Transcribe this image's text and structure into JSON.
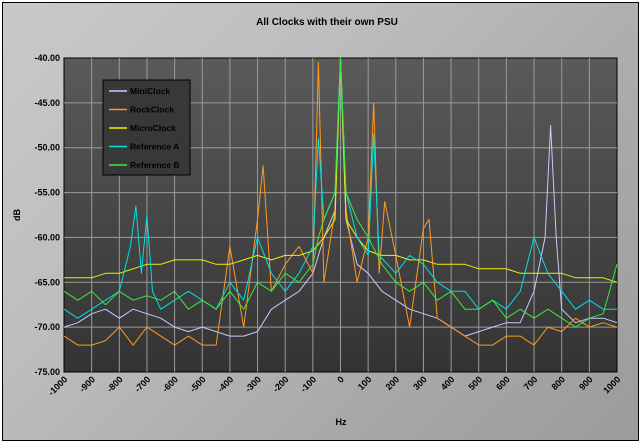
{
  "chart_data": {
    "type": "line",
    "title": "All Clocks with their own PSU",
    "xlabel": "Hz",
    "ylabel": "dB",
    "xlim": [
      -1000,
      1000
    ],
    "ylim": [
      -75,
      -40
    ],
    "grid": true,
    "legend_position": "top-left",
    "x_ticks": [
      "-1000",
      "-900",
      "-800",
      "-700",
      "-600",
      "-500",
      "-400",
      "-300",
      "-200",
      "-100",
      "0",
      "100",
      "200",
      "300",
      "400",
      "500",
      "600",
      "700",
      "800",
      "900",
      "1000"
    ],
    "y_ticks": [
      "-40.00",
      "-45.00",
      "-50.00",
      "-55.00",
      "-60.00",
      "-65.00",
      "-70.00",
      "-75.00"
    ],
    "series": [
      {
        "name": "MiniClock",
        "color": "#c8c8ff",
        "x": [
          -1000,
          -950,
          -900,
          -850,
          -800,
          -750,
          -700,
          -650,
          -600,
          -550,
          -500,
          -450,
          -400,
          -350,
          -300,
          -250,
          -200,
          -150,
          -100,
          -60,
          -20,
          0,
          20,
          60,
          100,
          150,
          200,
          250,
          300,
          350,
          400,
          450,
          500,
          550,
          600,
          650,
          700,
          740,
          760,
          780,
          800,
          850,
          900,
          950,
          1000
        ],
        "y": [
          -70,
          -69.5,
          -68.5,
          -68,
          -69,
          -68,
          -68.5,
          -69,
          -70,
          -70.5,
          -70,
          -70.5,
          -71,
          -71,
          -70.5,
          -68,
          -67,
          -66,
          -64,
          -60,
          -57,
          -40,
          -58,
          -63,
          -64,
          -66,
          -67,
          -68,
          -68.5,
          -69,
          -70,
          -71,
          -70.5,
          -70,
          -69.5,
          -69.5,
          -66,
          -60,
          -47.5,
          -60,
          -68,
          -69.5,
          -69,
          -69,
          -69.5
        ]
      },
      {
        "name": "RockClock",
        "color": "#ff9a1e",
        "x": [
          -1000,
          -950,
          -900,
          -850,
          -800,
          -750,
          -700,
          -650,
          -600,
          -550,
          -500,
          -450,
          -400,
          -350,
          -300,
          -280,
          -250,
          -200,
          -150,
          -100,
          -80,
          -60,
          -20,
          0,
          20,
          60,
          100,
          120,
          140,
          160,
          200,
          250,
          300,
          320,
          350,
          400,
          450,
          500,
          550,
          600,
          650,
          700,
          750,
          800,
          850,
          900,
          950,
          1000
        ],
        "y": [
          -71,
          -72,
          -72,
          -71.5,
          -70,
          -72,
          -70,
          -71,
          -72,
          -71,
          -72,
          -72,
          -61,
          -70,
          -58,
          -52,
          -66,
          -63,
          -61,
          -64,
          -40.5,
          -65,
          -57,
          -40,
          -57,
          -65,
          -60,
          -45,
          -64,
          -56,
          -62,
          -70,
          -59,
          -58,
          -69,
          -70,
          -71,
          -72,
          -72,
          -71,
          -71,
          -72,
          -70,
          -70.5,
          -69,
          -70,
          -69.5,
          -70
        ]
      },
      {
        "name": "MicroClock",
        "color": "#f0f000",
        "x": [
          -1000,
          -950,
          -900,
          -850,
          -800,
          -750,
          -700,
          -650,
          -600,
          -550,
          -500,
          -450,
          -400,
          -350,
          -300,
          -250,
          -200,
          -150,
          -100,
          -60,
          -20,
          0,
          20,
          60,
          100,
          150,
          200,
          250,
          300,
          350,
          400,
          450,
          500,
          550,
          600,
          650,
          700,
          750,
          800,
          850,
          900,
          950,
          1000
        ],
        "y": [
          -64.5,
          -64.5,
          -64.5,
          -64,
          -64,
          -63.5,
          -63,
          -63,
          -62.5,
          -62.5,
          -62.5,
          -63,
          -63,
          -62.5,
          -62,
          -62.5,
          -62,
          -62,
          -61.5,
          -60,
          -58,
          -40,
          -58,
          -60,
          -61.5,
          -62,
          -62,
          -62.5,
          -62.5,
          -63,
          -63,
          -63,
          -63.5,
          -63.5,
          -63.5,
          -64,
          -64,
          -64,
          -64,
          -64.5,
          -64.5,
          -64.5,
          -65
        ]
      },
      {
        "name": "Reference A",
        "color": "#00e0e0",
        "x": [
          -1000,
          -950,
          -900,
          -850,
          -800,
          -760,
          -740,
          -720,
          -700,
          -680,
          -650,
          -600,
          -550,
          -500,
          -450,
          -400,
          -350,
          -300,
          -250,
          -200,
          -150,
          -100,
          -80,
          -60,
          -20,
          0,
          20,
          60,
          100,
          120,
          140,
          200,
          250,
          300,
          350,
          400,
          450,
          500,
          550,
          600,
          650,
          700,
          750,
          800,
          850,
          900,
          950,
          1000
        ],
        "y": [
          -68,
          -69,
          -68,
          -67,
          -66,
          -61,
          -56.5,
          -64,
          -57.5,
          -66,
          -68,
          -67,
          -66,
          -67,
          -68,
          -65,
          -67,
          -60,
          -64,
          -66,
          -64,
          -61,
          -49,
          -58,
          -55,
          -40,
          -55,
          -60,
          -62,
          -48.5,
          -62,
          -64,
          -62,
          -63,
          -65,
          -66,
          -66,
          -68,
          -67,
          -68,
          -66,
          -60,
          -64,
          -66,
          -68,
          -67,
          -68,
          -68
        ]
      },
      {
        "name": "Reference B",
        "color": "#3ee83e",
        "x": [
          -1000,
          -950,
          -900,
          -850,
          -800,
          -750,
          -700,
          -650,
          -600,
          -550,
          -500,
          -450,
          -400,
          -350,
          -300,
          -250,
          -200,
          -150,
          -100,
          -80,
          -60,
          -20,
          0,
          20,
          60,
          100,
          150,
          200,
          250,
          300,
          350,
          400,
          450,
          500,
          550,
          600,
          650,
          700,
          750,
          800,
          850,
          900,
          950,
          1000
        ],
        "y": [
          -66,
          -67,
          -66,
          -67.5,
          -66,
          -67,
          -66.5,
          -67,
          -66,
          -68,
          -67,
          -68,
          -66,
          -68,
          -65,
          -66,
          -64,
          -65,
          -63,
          -60,
          -58,
          -55,
          -40,
          -55,
          -58,
          -60,
          -63,
          -65,
          -66,
          -65,
          -67,
          -66,
          -68,
          -68,
          -67,
          -69,
          -68,
          -69,
          -68,
          -69,
          -70,
          -69,
          -68.5,
          -63
        ]
      }
    ]
  }
}
